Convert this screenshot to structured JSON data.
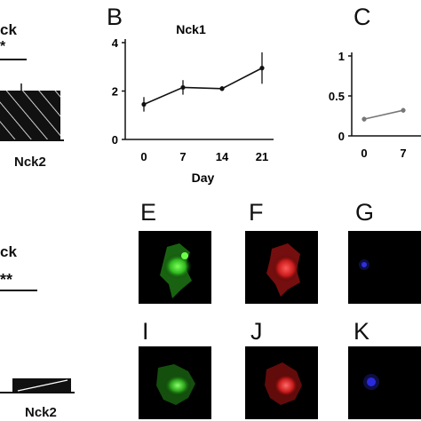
{
  "panels": {
    "A_partial": {
      "title_fragment": "ck",
      "sig": "*",
      "bar_label": "Nck2",
      "bar_color": "#111111"
    },
    "B": {
      "letter": "B",
      "title": "Nck1"
    },
    "C": {
      "letter": "C"
    },
    "D_partial": {
      "title_fragment": "ck",
      "sig": "**",
      "bar_label": "Nck2"
    },
    "E": {
      "letter": "E",
      "stain": "green"
    },
    "F": {
      "letter": "F",
      "stain": "red"
    },
    "G": {
      "letter": "G",
      "stain": "blue"
    },
    "I": {
      "letter": "I",
      "stain": "green"
    },
    "J": {
      "letter": "J",
      "stain": "red"
    },
    "K": {
      "letter": "K",
      "stain": "blue"
    }
  },
  "chart_data": [
    {
      "type": "line",
      "title": "Nck1",
      "xlabel": "Day",
      "ylabel": "",
      "x": [
        0,
        7,
        14,
        21
      ],
      "values": [
        1.45,
        2.15,
        2.1,
        2.95
      ],
      "errors": [
        0.3,
        0.3,
        0.1,
        0.65
      ],
      "ylim": [
        0,
        4
      ],
      "yticks": [
        "0",
        "2",
        "4"
      ],
      "xticks": [
        "0",
        "7",
        "14",
        "21"
      ],
      "line_color": "#111111"
    },
    {
      "type": "line",
      "title": "",
      "xlabel": "",
      "x": [
        0,
        7
      ],
      "values": [
        0.21,
        0.32
      ],
      "errors": [
        0.03,
        0.03
      ],
      "ylim": [
        0,
        1
      ],
      "yticks": [
        "0",
        "0.5",
        "1"
      ],
      "xticks": [
        "0",
        "7"
      ],
      "line_color": "#777777"
    }
  ]
}
